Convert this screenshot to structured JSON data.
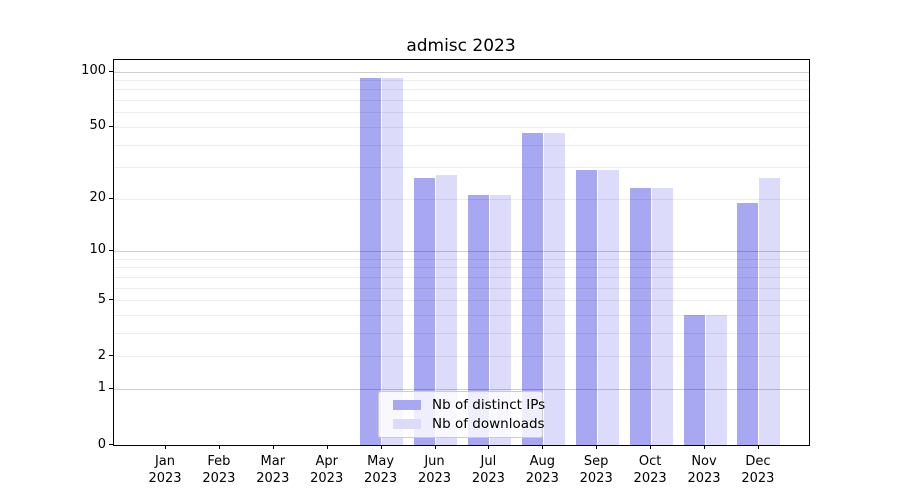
{
  "chart_data": {
    "type": "bar",
    "title": "admisc 2023",
    "x_tick_labels": [
      [
        "Jan",
        "2023"
      ],
      [
        "Feb",
        "2023"
      ],
      [
        "Mar",
        "2023"
      ],
      [
        "Apr",
        "2023"
      ],
      [
        "May",
        "2023"
      ],
      [
        "Jun",
        "2023"
      ],
      [
        "Jul",
        "2023"
      ],
      [
        "Aug",
        "2023"
      ],
      [
        "Sep",
        "2023"
      ],
      [
        "Oct",
        "2023"
      ],
      [
        "Nov",
        "2023"
      ],
      [
        "Dec",
        "2023"
      ]
    ],
    "series": [
      {
        "name": "Nb of distinct IPs",
        "color": "#a8a8f2",
        "values": [
          0,
          0,
          0,
          0,
          92,
          26,
          21,
          46,
          29,
          23,
          4,
          19
        ]
      },
      {
        "name": "Nb of downloads",
        "color": "#dcdcfa",
        "values": [
          0,
          0,
          0,
          0,
          92,
          27,
          21,
          46,
          29,
          23,
          4,
          26
        ]
      }
    ],
    "xlabel": "",
    "ylabel": "",
    "y_scale": "log1p",
    "ylim": [
      0,
      116
    ],
    "y_ticks": [
      0,
      1,
      2,
      5,
      10,
      20,
      50,
      100
    ],
    "y_major_gridlines": [
      1,
      10,
      100
    ],
    "y_minor_gridlines": [
      2,
      3,
      4,
      5,
      6,
      7,
      8,
      9,
      20,
      30,
      40,
      50,
      60,
      70,
      80,
      90
    ],
    "grid": true,
    "legend_position": "lower center"
  }
}
